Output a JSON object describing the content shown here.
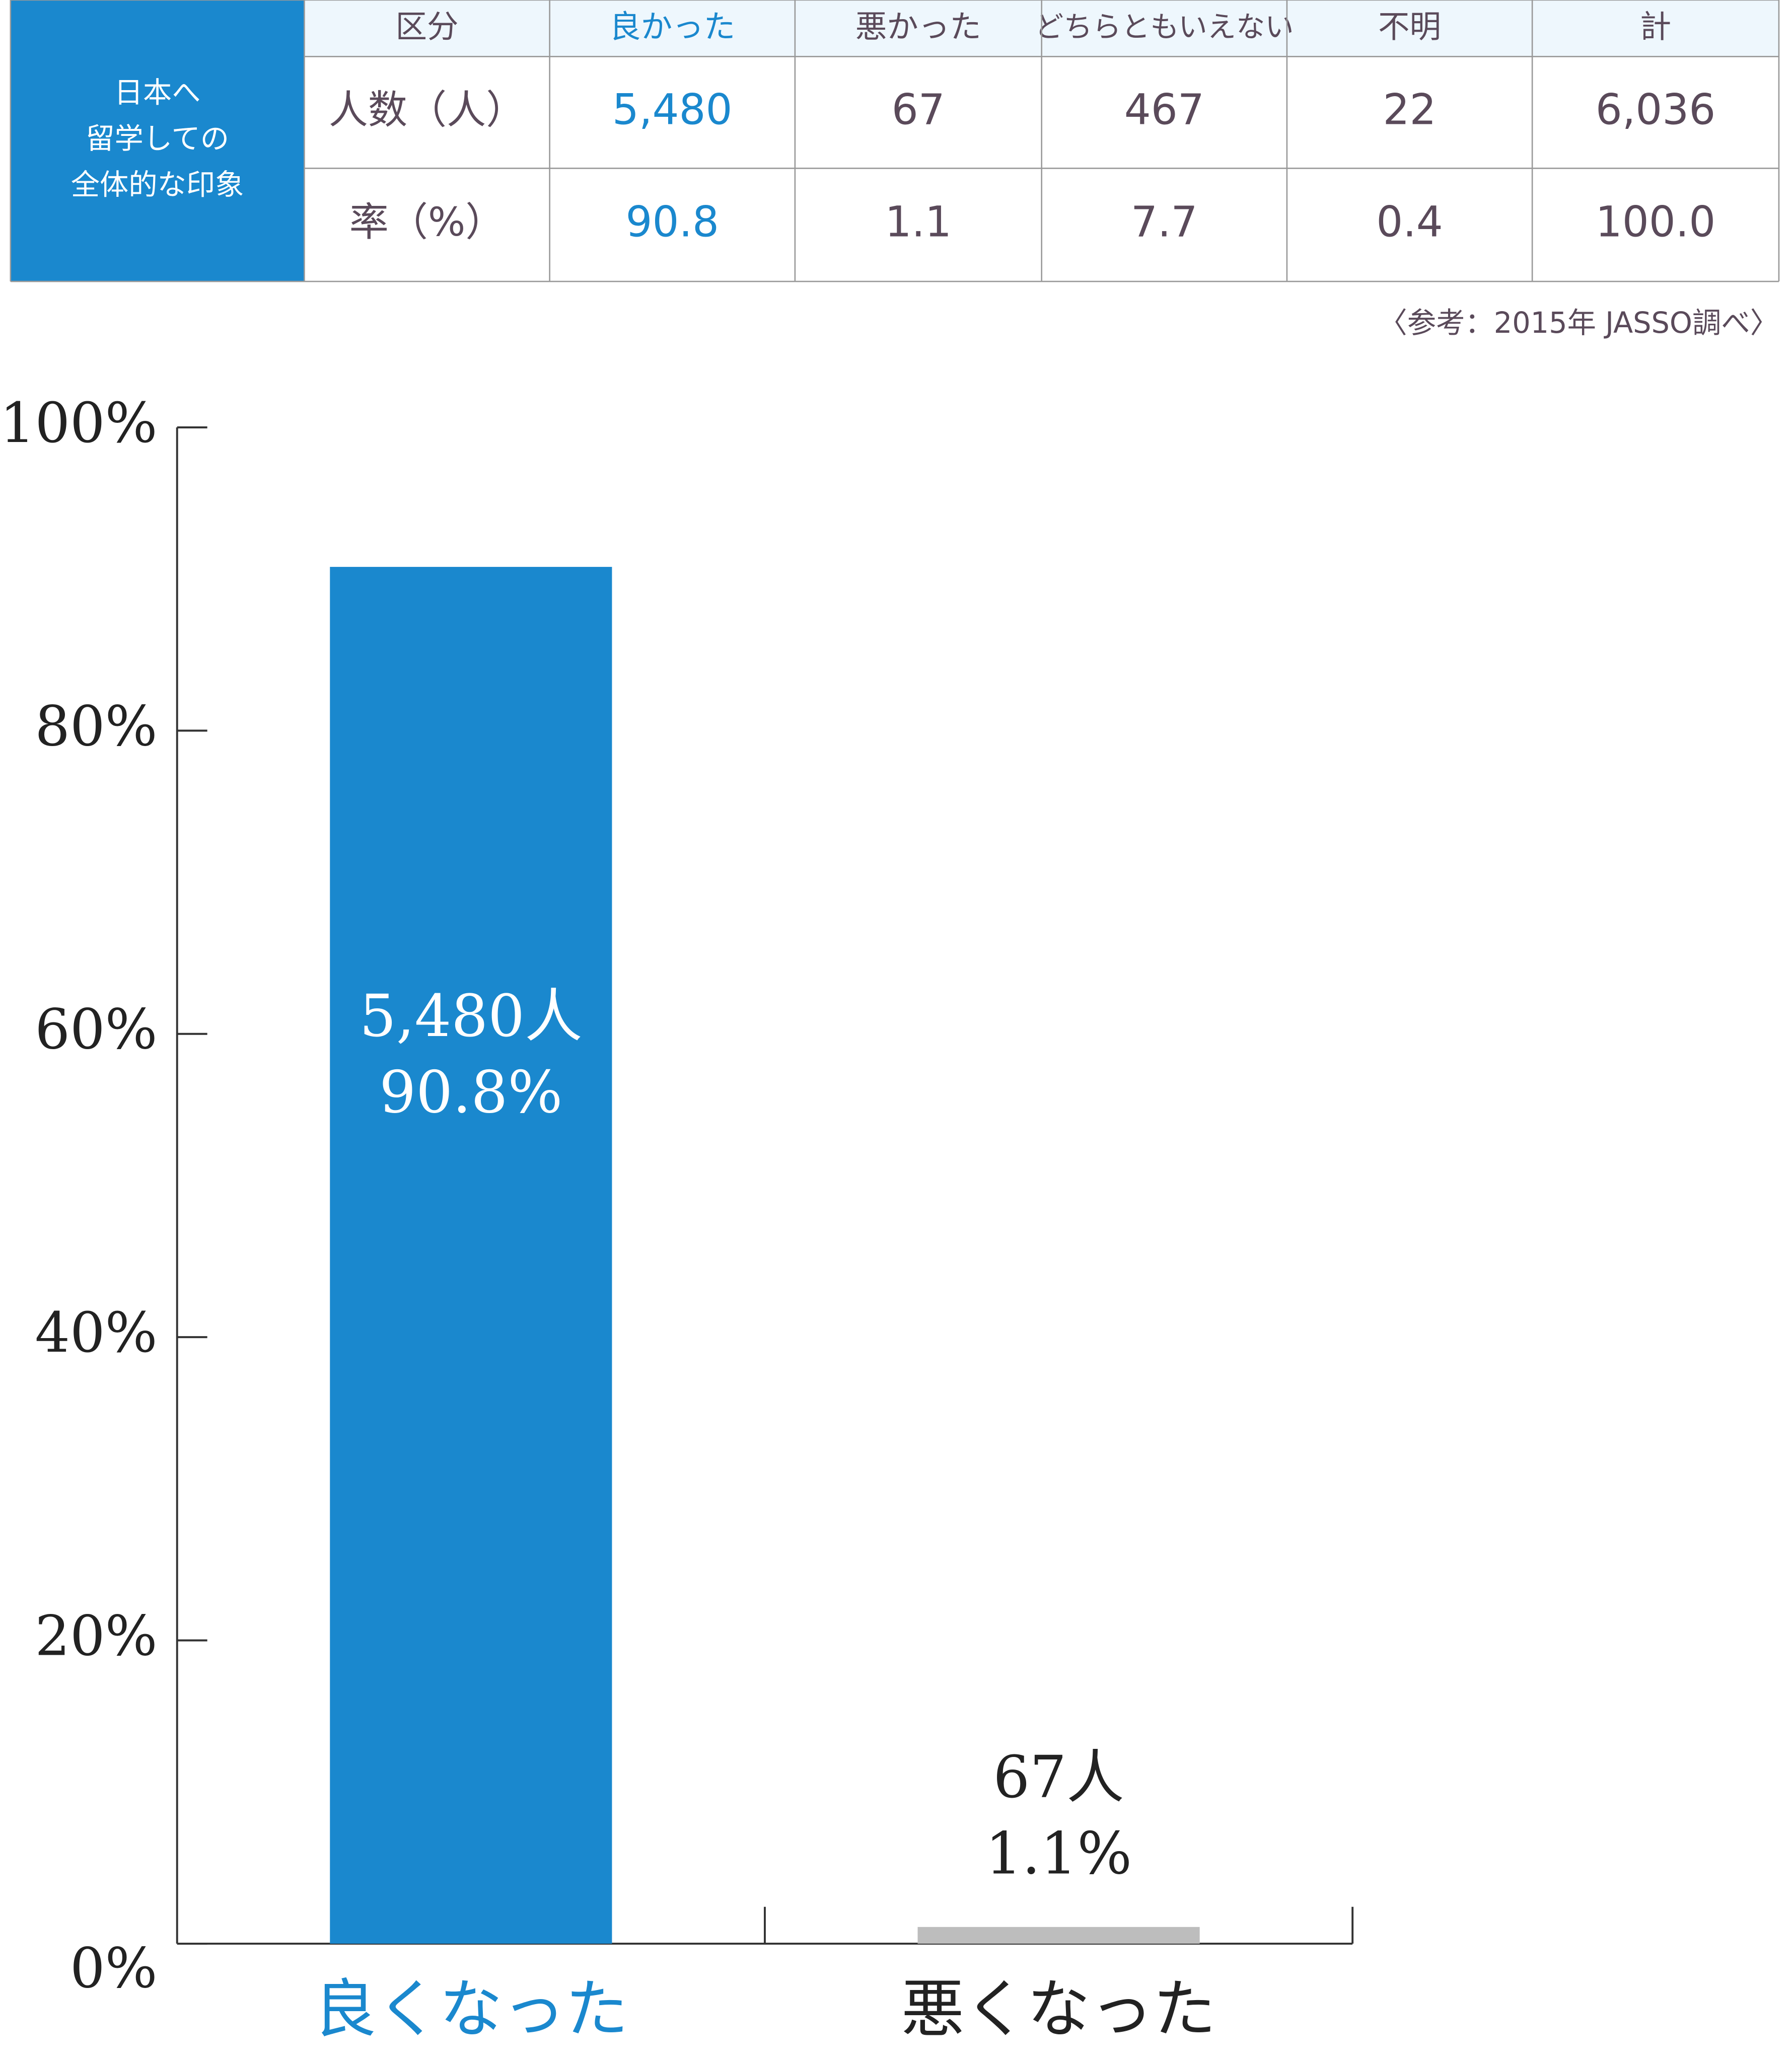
{
  "table": {
    "corner": [
      "日本へ",
      "留学しての",
      "全体的な印象"
    ],
    "header": [
      "区分",
      "良かった",
      "悪かった",
      "どちらともいえない",
      "不明",
      "計"
    ],
    "rows": [
      [
        "人数（人）",
        "5,480",
        "67",
        "467",
        "22",
        "6,036"
      ],
      [
        "率（%）",
        "90.8",
        "1.1",
        "7.7",
        "0.4",
        "100.0"
      ]
    ],
    "source": "〈参考：2015年 JASSO調べ〉"
  },
  "chart_data": {
    "type": "bar",
    "categories": [
      "良くなった",
      "悪くなった"
    ],
    "values": [
      90.8,
      1.1
    ],
    "value_labels": [
      "90.8%",
      "1.1%"
    ],
    "count_labels": [
      "5,480人",
      "67人"
    ],
    "colors": [
      "#1a88ce",
      "#bdbdbd"
    ],
    "label_colors": [
      "#1a88ce",
      "#222222"
    ],
    "ylim": [
      0,
      100
    ],
    "yticks": [
      {
        "value": 0,
        "label": "0%"
      },
      {
        "value": 20,
        "label": "20%"
      },
      {
        "value": 40,
        "label": "40%"
      },
      {
        "value": 60,
        "label": "60%"
      },
      {
        "value": 80,
        "label": "80%"
      },
      {
        "value": 100,
        "label": "100%"
      }
    ]
  }
}
